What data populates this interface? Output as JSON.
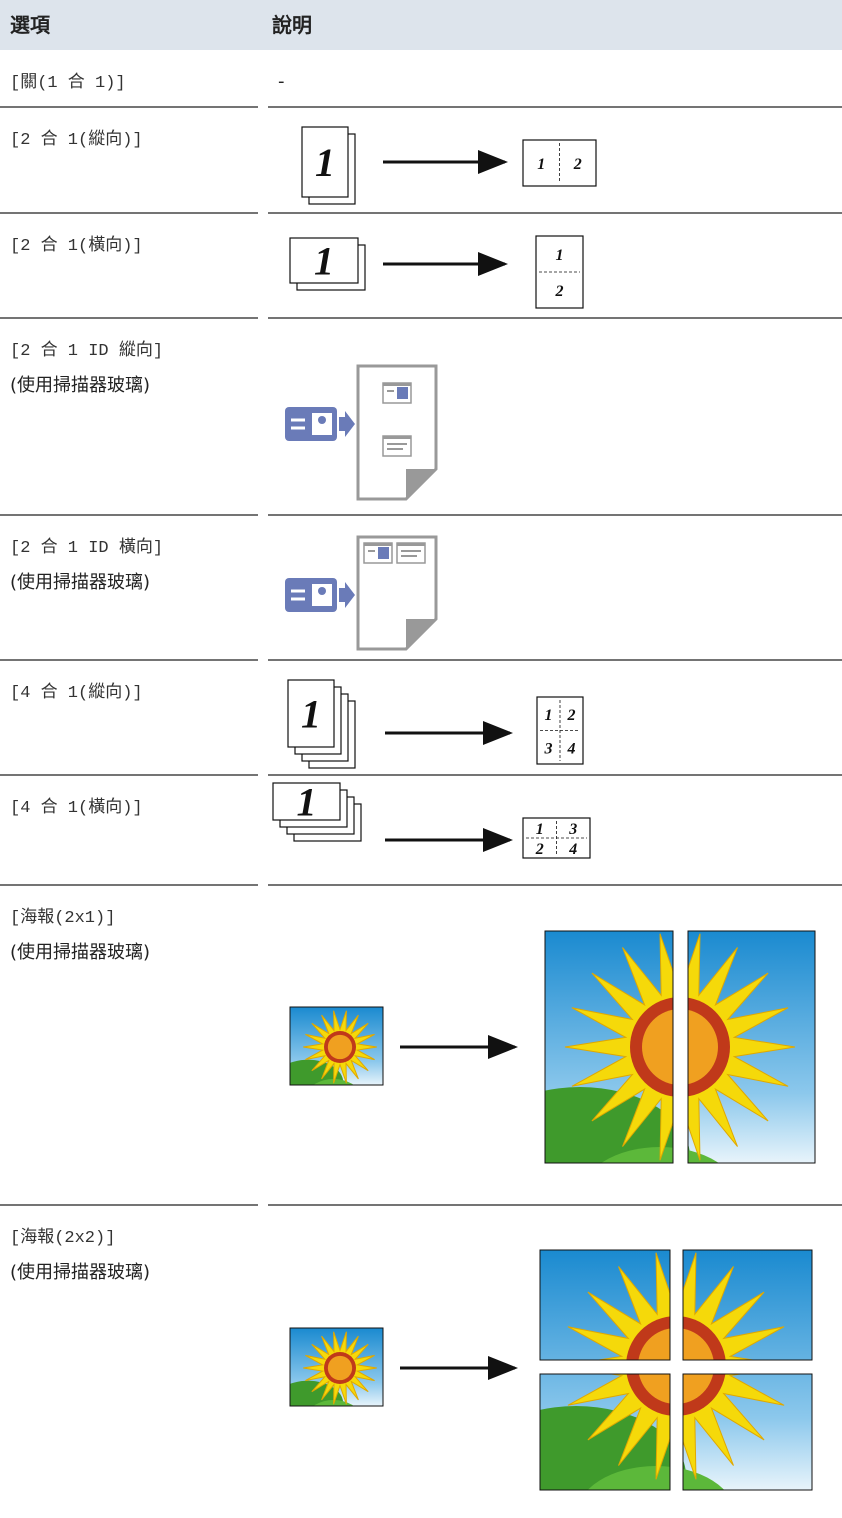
{
  "table": {
    "headers": [
      "選項",
      "說明"
    ],
    "rows": [
      {
        "option": [
          "[關(1 合 1)]"
        ],
        "description": "-"
      },
      {
        "option": [
          "[2 合 1(縱向)]"
        ],
        "diagram": {
          "source": "1",
          "result": [
            "1",
            "2"
          ]
        }
      },
      {
        "option": [
          "[2 合 1(橫向)]"
        ],
        "diagram": {
          "source": "1",
          "result": [
            "1",
            "2"
          ]
        }
      },
      {
        "option": [
          "[2 合 1 ID 縱向]",
          "(使用掃描器玻璃)"
        ]
      },
      {
        "option": [
          "[2 合 1 ID 橫向]",
          "(使用掃描器玻璃)"
        ]
      },
      {
        "option": [
          "[4 合 1(縱向)]"
        ],
        "diagram": {
          "source": "1",
          "result": [
            "1",
            "2",
            "3",
            "4"
          ]
        }
      },
      {
        "option": [
          "[4 合 1(橫向)]"
        ],
        "diagram": {
          "source": "1",
          "result": [
            "1",
            "3",
            "2",
            "4"
          ]
        }
      },
      {
        "option": [
          "[海報(2x1)]",
          "(使用掃描器玻璃)"
        ]
      },
      {
        "option": [
          "[海報(2x2)]",
          "(使用掃描器玻璃)"
        ]
      }
    ]
  }
}
